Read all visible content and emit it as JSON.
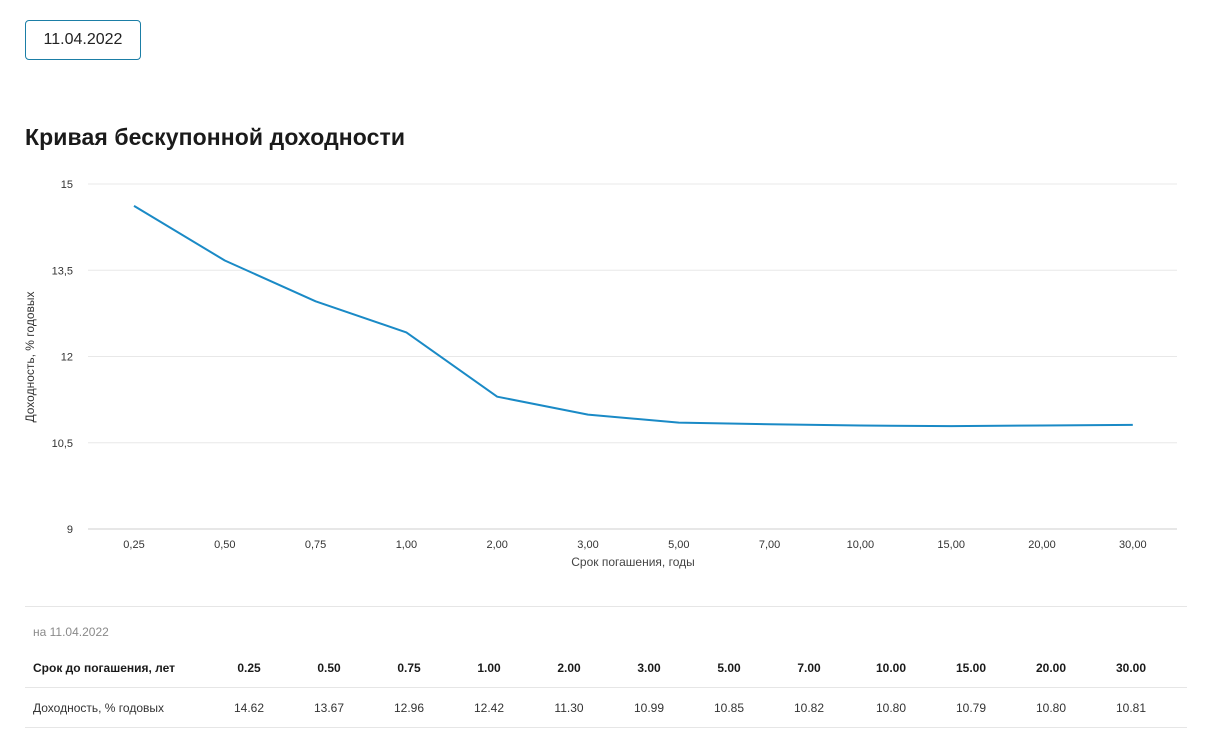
{
  "date_selector": {
    "value": "11.04.2022"
  },
  "page_title": "Кривая бескупонной доходности",
  "chart_data": {
    "type": "line",
    "title": "",
    "xlabel": "Срок погашения, годы",
    "ylabel": "Доходность, % годовых",
    "categories": [
      "0,25",
      "0,50",
      "0,75",
      "1,00",
      "2,00",
      "3,00",
      "5,00",
      "7,00",
      "10,00",
      "15,00",
      "20,00",
      "30,00"
    ],
    "y_ticks": [
      "15",
      "13,5",
      "12",
      "10,5",
      "9"
    ],
    "ylim": [
      9,
      15
    ],
    "grid": true,
    "legend": "none",
    "series": [
      {
        "values": [
          14.62,
          13.67,
          12.96,
          12.42,
          11.3,
          10.99,
          10.85,
          10.82,
          10.8,
          10.79,
          10.8,
          10.81
        ]
      }
    ],
    "colors": {
      "line": "#1a8ac6",
      "grid": "#e8e8e8",
      "axis": "#cfcfcf"
    }
  },
  "table": {
    "as_of": "на 11.04.2022",
    "header_label": "Срок до погашения, лет",
    "terms": [
      "0.25",
      "0.50",
      "0.75",
      "1.00",
      "2.00",
      "3.00",
      "5.00",
      "7.00",
      "10.00",
      "15.00",
      "20.00",
      "30.00"
    ],
    "yield_label": "Доходность, % годовых",
    "yields": [
      "14.62",
      "13.67",
      "12.96",
      "12.42",
      "11.30",
      "10.99",
      "10.85",
      "10.82",
      "10.80",
      "10.79",
      "10.80",
      "10.81"
    ]
  }
}
